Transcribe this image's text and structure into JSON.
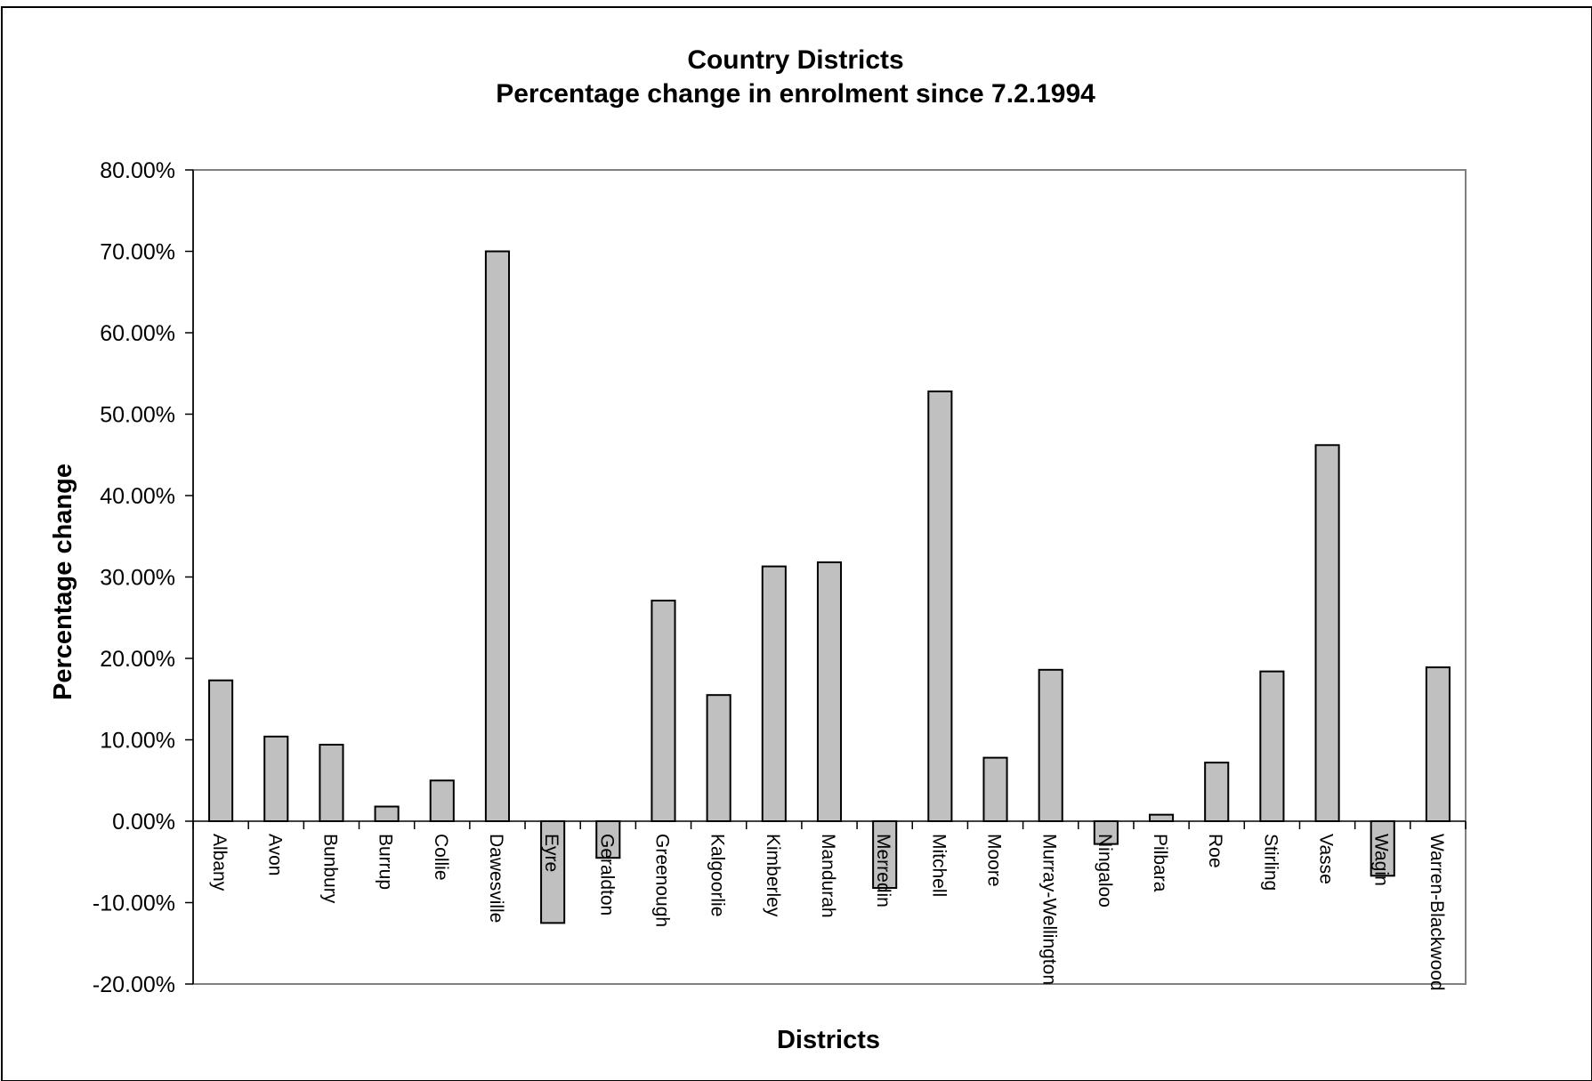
{
  "chart_data": {
    "type": "bar",
    "title": "Country Districts",
    "subtitle": "Percentage change in enrolment since 7.2.1994",
    "xlabel": "Districts",
    "ylabel": "Percentage change",
    "ylim": [
      -0.2,
      0.8
    ],
    "yticks": [
      0.8,
      0.7,
      0.6,
      0.5,
      0.4,
      0.3,
      0.2,
      0.1,
      0.0,
      -0.1,
      -0.2
    ],
    "ytick_labels": [
      "80.00%",
      "70.00%",
      "60.00%",
      "50.00%",
      "40.00%",
      "30.00%",
      "20.00%",
      "10.00%",
      "0.00%",
      "-10.00%",
      "-20.00%"
    ],
    "grid": false,
    "legend": "none",
    "bar_color": "#c0c0c0",
    "categories": [
      "Albany",
      "Avon",
      "Bunbury",
      "Burrup",
      "Collie",
      "Dawesville",
      "Eyre",
      "Geraldton",
      "Greenough",
      "Kalgoorlie",
      "Kimberley",
      "Mandurah",
      "Merredin",
      "Mitchell",
      "Moore",
      "Murray-Wellington",
      "Ningaloo",
      "Pilbara",
      "Roe",
      "Stirling",
      "Vasse",
      "Wagin",
      "Warren-Blackwood"
    ],
    "values": [
      0.173,
      0.104,
      0.094,
      0.018,
      0.05,
      0.7,
      -0.125,
      -0.045,
      0.271,
      0.155,
      0.313,
      0.318,
      -0.082,
      0.528,
      0.078,
      0.186,
      -0.028,
      0.008,
      0.072,
      0.184,
      0.462,
      -0.067,
      0.189
    ]
  }
}
